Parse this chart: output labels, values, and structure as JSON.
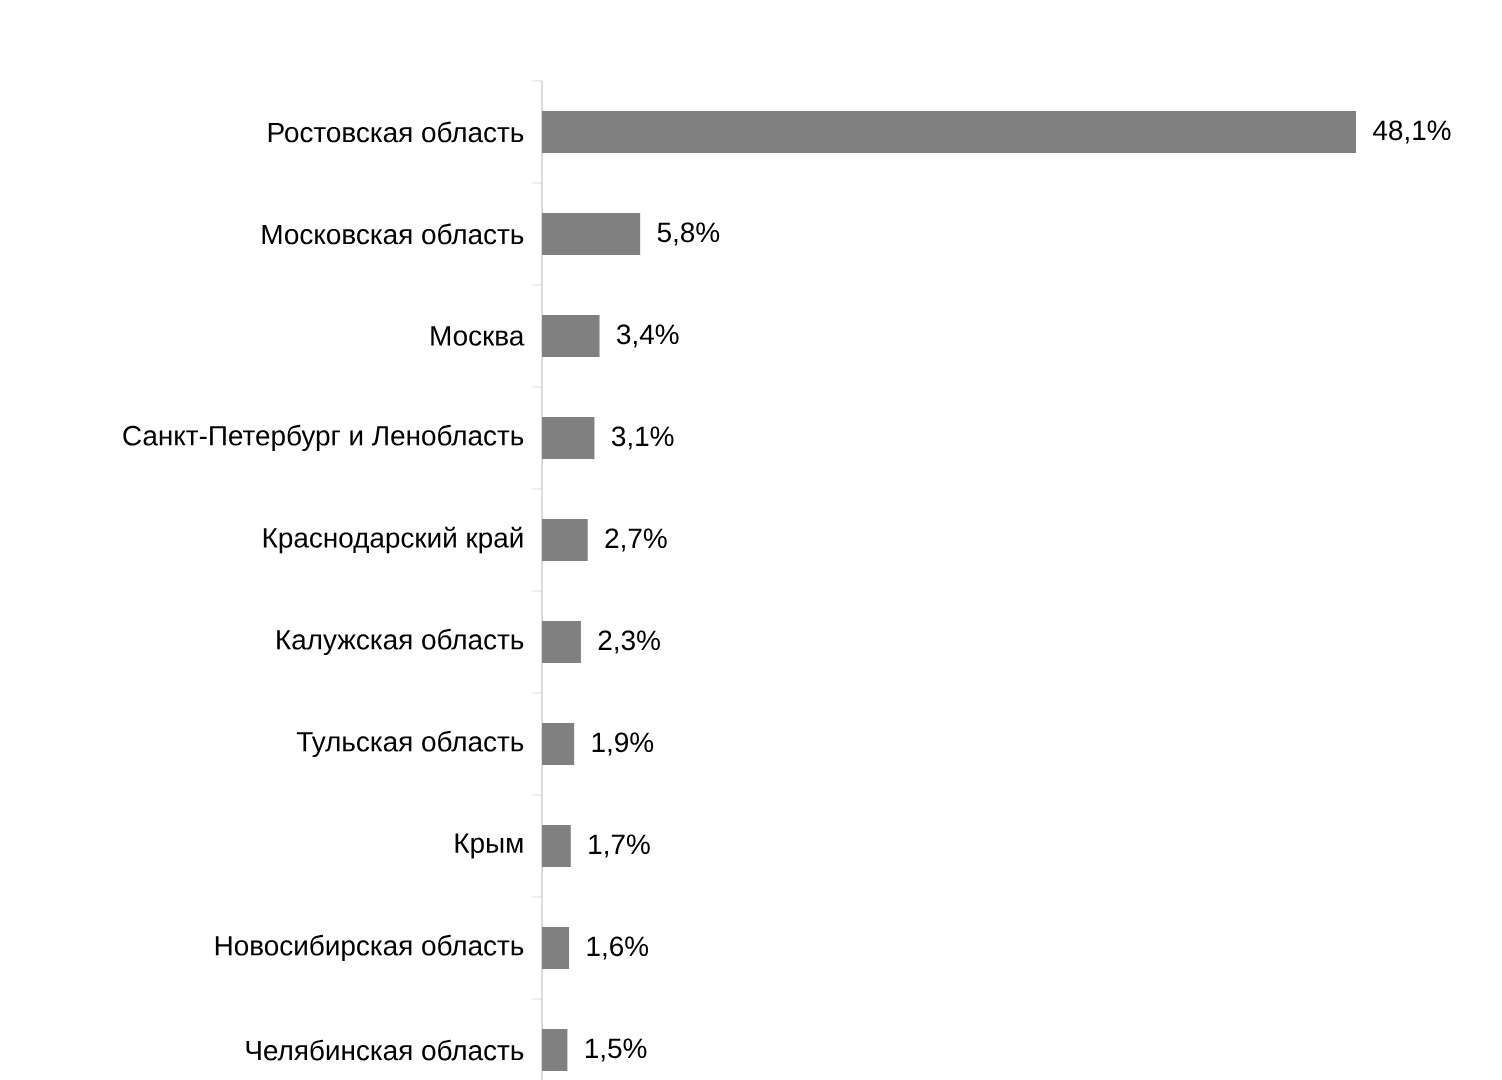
{
  "chart_data": {
    "type": "bar",
    "orientation": "horizontal",
    "categories": [
      "Ростовская область",
      "Московская область",
      "Москва",
      "Санкт-Петербург и Ленобласть",
      "Краснодарский край",
      "Калужская область",
      "Тульская область",
      "Крым",
      "Новосибирская область",
      "Челябинская область"
    ],
    "values": [
      48.1,
      5.8,
      3.4,
      3.1,
      2.7,
      2.3,
      1.9,
      1.7,
      1.6,
      1.5
    ],
    "value_labels": [
      "48,1%",
      "5,8%",
      "3,4%",
      "3,1%",
      "2,7%",
      "2,3%",
      "1,9%",
      "1,7%",
      "1,6%",
      "1,5%"
    ],
    "color": "#808080"
  }
}
